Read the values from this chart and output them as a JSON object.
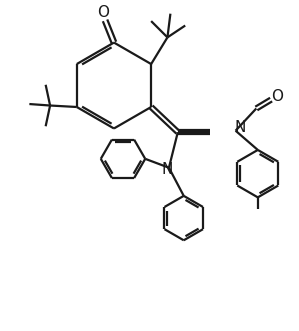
{
  "bg_color": "#ffffff",
  "line_color": "#1a1a1a",
  "line_width": 1.6,
  "fig_width": 2.99,
  "fig_height": 3.31,
  "dpi": 100,
  "xlim": [
    0,
    10
  ],
  "ylim": [
    0,
    11
  ]
}
